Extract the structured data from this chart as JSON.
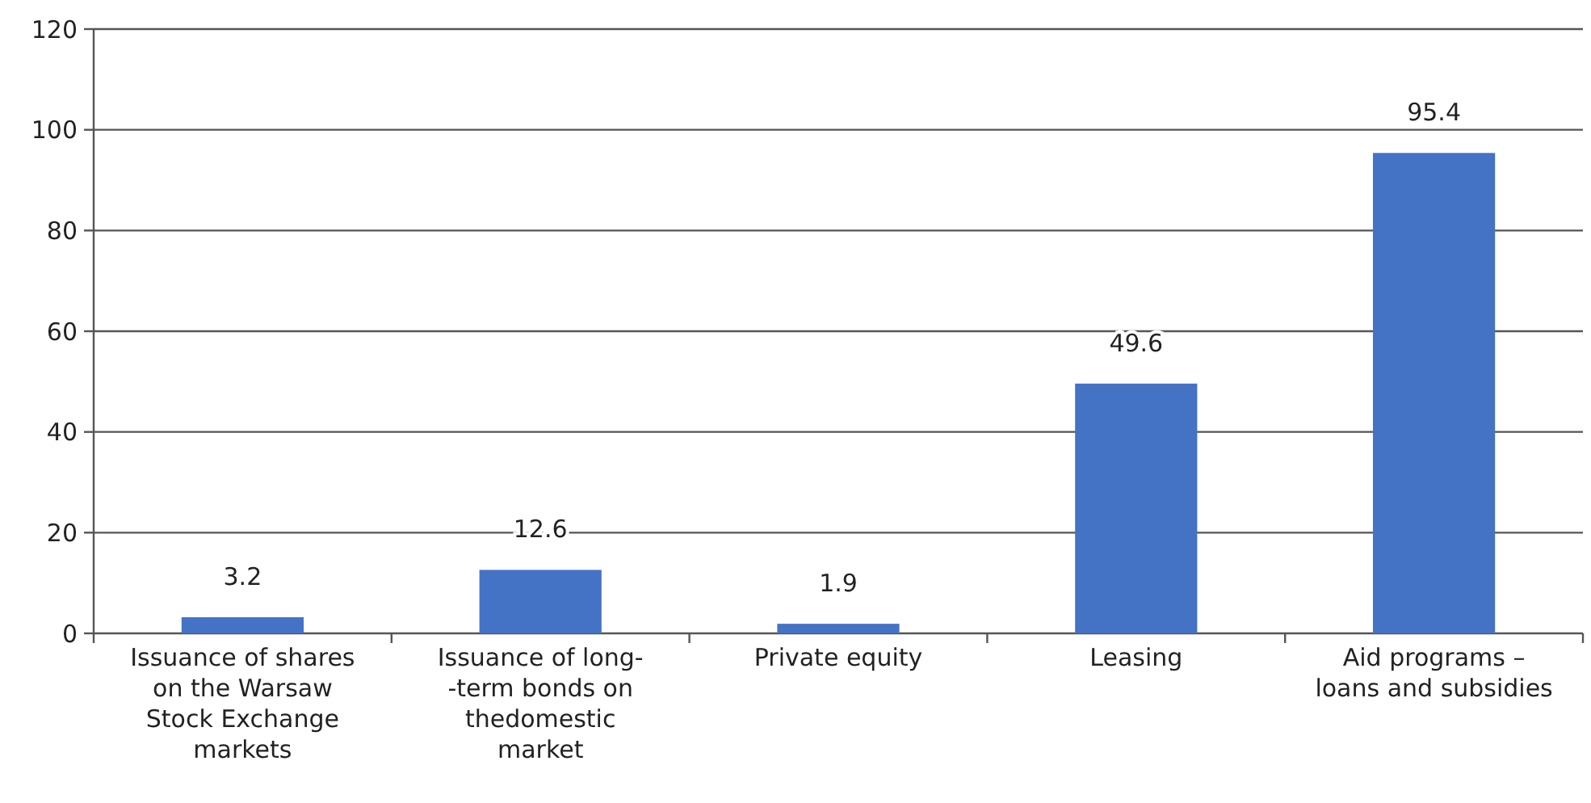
{
  "chart_data": {
    "type": "bar",
    "categories": [
      "Issuance of shares\non the Warsaw\nStock Exchange\nmarkets",
      "Issuance of long-\n-term bonds on\nthedomestic\nmarket",
      "Private equity",
      "Leasing",
      "Aid programs –\nloans and subsidies"
    ],
    "values": [
      3.2,
      12.6,
      1.9,
      49.6,
      95.4
    ],
    "color": "#4472c4",
    "ylim": [
      0,
      120
    ],
    "yticks": [
      0,
      20,
      40,
      60,
      80,
      100,
      120
    ],
    "grid": "y",
    "data_labels": true
  }
}
